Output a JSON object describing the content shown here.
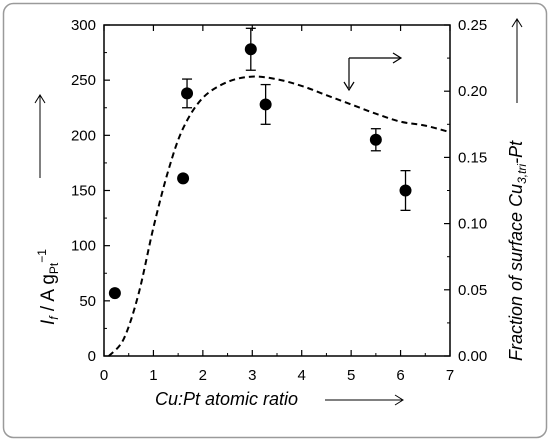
{
  "chart_data": {
    "type": "scatter",
    "xlabel": "Cu:Pt atomic ratio",
    "ylabel_left": "I_f / A g_Pt^-1",
    "ylabel_right": "Fraction of surface Cu3,tri-Pt",
    "xlim": [
      0,
      7
    ],
    "ylim_left": [
      0,
      300
    ],
    "ylim_right": [
      0,
      0.25
    ],
    "x_ticks": [
      "0",
      "1",
      "2",
      "3",
      "4",
      "5",
      "6",
      "7"
    ],
    "y_left_ticks": [
      "0",
      "50",
      "100",
      "150",
      "200",
      "250",
      "300"
    ],
    "y_right_ticks": [
      "0.00",
      "0.05",
      "0.10",
      "0.15",
      "0.20",
      "0.25"
    ],
    "grid": false,
    "series": [
      {
        "style": "filled-circle-markers-with-error-bars",
        "axis": "left",
        "points": [
          {
            "x": 0.22,
            "y": 57,
            "err": 0
          },
          {
            "x": 1.6,
            "y": 161,
            "err": 0
          },
          {
            "x": 1.68,
            "y": 238,
            "err": 13
          },
          {
            "x": 2.97,
            "y": 278,
            "err": 19
          },
          {
            "x": 3.27,
            "y": 228,
            "err": 18
          },
          {
            "x": 5.5,
            "y": 196,
            "err": 10
          },
          {
            "x": 6.1,
            "y": 150,
            "err": 18
          }
        ]
      },
      {
        "style": "dashed-line",
        "axis": "right",
        "points": [
          {
            "x": 0.1,
            "y": 0.0
          },
          {
            "x": 0.4,
            "y": 0.013
          },
          {
            "x": 0.7,
            "y": 0.047
          },
          {
            "x": 1.0,
            "y": 0.097
          },
          {
            "x": 1.3,
            "y": 0.14
          },
          {
            "x": 1.6,
            "y": 0.172
          },
          {
            "x": 2.0,
            "y": 0.195
          },
          {
            "x": 2.5,
            "y": 0.207
          },
          {
            "x": 3.0,
            "y": 0.211
          },
          {
            "x": 3.5,
            "y": 0.209
          },
          {
            "x": 4.0,
            "y": 0.204
          },
          {
            "x": 4.5,
            "y": 0.197
          },
          {
            "x": 5.0,
            "y": 0.19
          },
          {
            "x": 5.5,
            "y": 0.183
          },
          {
            "x": 6.0,
            "y": 0.177
          },
          {
            "x": 6.5,
            "y": 0.174
          },
          {
            "x": 7.0,
            "y": 0.169
          }
        ]
      }
    ]
  }
}
